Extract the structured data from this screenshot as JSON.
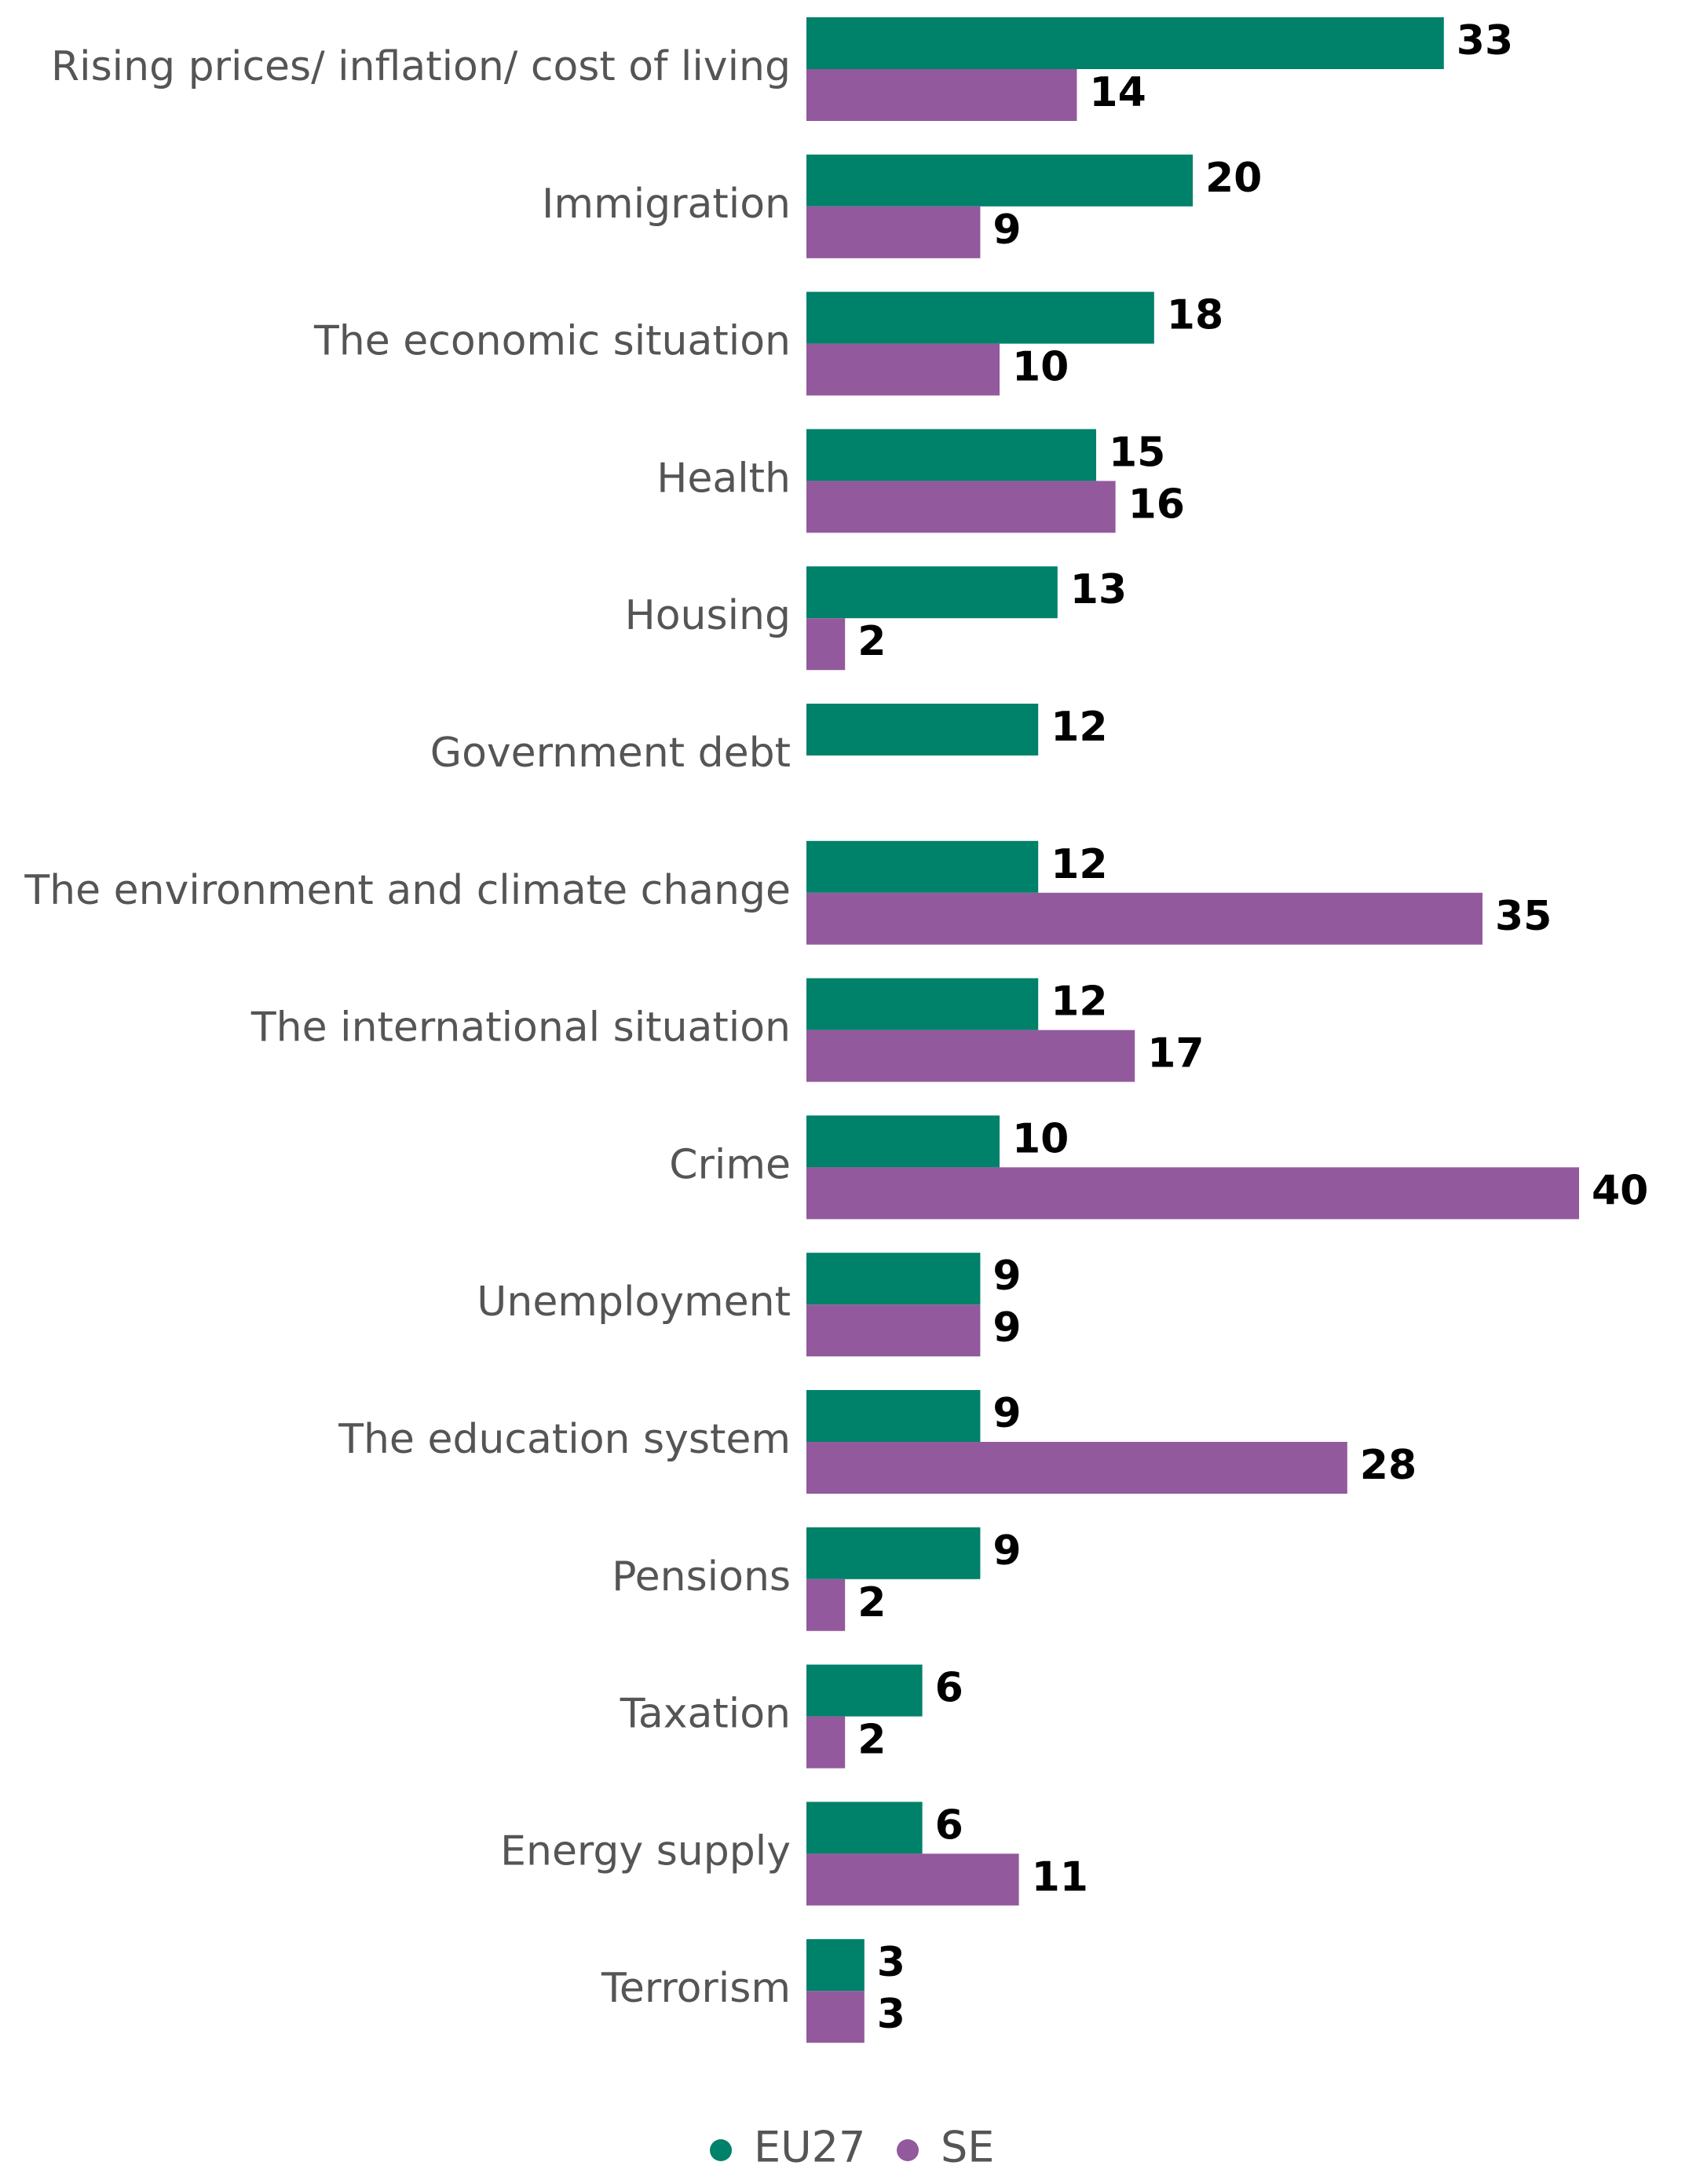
{
  "chart_data": {
    "type": "bar",
    "orientation": "horizontal",
    "categories": [
      "Rising prices/ inflation/ cost of living",
      "Immigration",
      "The economic situation",
      "Health",
      "Housing",
      "Government debt",
      "The environment and climate change",
      "The international situation",
      "Crime",
      "Unemployment",
      "The education system",
      "Pensions",
      "Taxation",
      "Energy supply",
      "Terrorism"
    ],
    "series": [
      {
        "name": "EU27",
        "color": "#00816A",
        "values": [
          33,
          20,
          18,
          15,
          13,
          12,
          12,
          12,
          10,
          9,
          9,
          9,
          6,
          6,
          3
        ]
      },
      {
        "name": "SE",
        "color": "#93599D",
        "values": [
          14,
          9,
          10,
          16,
          2,
          null,
          35,
          17,
          40,
          9,
          28,
          2,
          2,
          11,
          3
        ]
      }
    ],
    "xlim": [
      0,
      40
    ],
    "grid": false,
    "legend_position": "bottom"
  }
}
